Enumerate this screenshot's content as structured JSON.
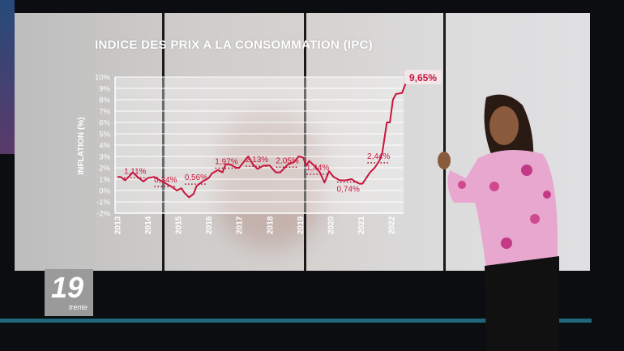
{
  "chart_data": {
    "type": "line",
    "title": "INDICE DES PRIX A LA CONSOMMATION (IPC)",
    "ylabel": "INFLATION (%)",
    "xlabel": "",
    "ylim": [
      -2,
      10
    ],
    "xlim": [
      2013,
      2022.6
    ],
    "grid": true,
    "yticks": [
      "-2%",
      "-1%",
      "0%",
      "1%",
      "2%",
      "3%",
      "4%",
      "5%",
      "6%",
      "7%",
      "8%",
      "9%",
      "10%"
    ],
    "xticks": [
      "2013",
      "2014",
      "2015",
      "2016",
      "2017",
      "2018",
      "2019",
      "2020",
      "2021",
      "2022"
    ],
    "line_color": "#c8143c",
    "series": [
      {
        "x": [
          2013.0,
          2013.1,
          2013.25,
          2013.4,
          2013.5,
          2013.7,
          2013.85,
          2014.0,
          2014.2,
          2014.4,
          2014.6,
          2014.8,
          2014.95,
          2015.1,
          2015.2,
          2015.35,
          2015.5,
          2015.6,
          2015.8,
          2016.0,
          2016.1,
          2016.3,
          2016.45,
          2016.55,
          2016.7,
          2016.9,
          2017.0,
          2017.2,
          2017.3,
          2017.45,
          2017.6,
          2017.8,
          2018.0,
          2018.2,
          2018.35,
          2018.6,
          2018.8,
          2018.95,
          2019.1,
          2019.2,
          2019.3,
          2019.5,
          2019.65,
          2019.8,
          2019.95,
          2020.1,
          2020.3,
          2020.5,
          2020.7,
          2020.8,
          2020.95,
          2021.05,
          2021.3,
          2021.45,
          2021.6,
          2021.7,
          2021.85,
          2021.95,
          2022.05,
          2022.15,
          2022.35,
          2022.5
        ],
        "y": [
          1.2,
          1.2,
          0.9,
          1.3,
          1.6,
          1.1,
          0.8,
          1.1,
          1.2,
          0.9,
          0.6,
          0.3,
          0.0,
          0.2,
          -0.2,
          -0.6,
          -0.3,
          0.4,
          0.8,
          1.1,
          1.5,
          1.8,
          1.6,
          2.3,
          2.3,
          2.0,
          2.0,
          2.7,
          3.0,
          2.3,
          1.9,
          2.2,
          2.2,
          1.6,
          1.6,
          2.3,
          2.5,
          3.0,
          2.9,
          2.2,
          2.6,
          2.1,
          1.6,
          0.7,
          1.7,
          1.2,
          0.9,
          0.9,
          1.0,
          0.8,
          0.6,
          0.6,
          1.6,
          2.0,
          2.6,
          3.3,
          6.0,
          6.0,
          8.0,
          8.5,
          8.6,
          9.65
        ]
      }
    ],
    "annual_averages": [
      {
        "year": 2013,
        "value": 1.11,
        "label": "1,11%"
      },
      {
        "year": 2014,
        "value": 0.34,
        "label": "0,34%"
      },
      {
        "year": 2015,
        "value": 0.56,
        "label": "0,56%"
      },
      {
        "year": 2016,
        "value": 1.97,
        "label": "1,97%"
      },
      {
        "year": 2017,
        "value": 2.13,
        "label": "2,13%"
      },
      {
        "year": 2018,
        "value": 2.05,
        "label": "2,05%"
      },
      {
        "year": 2019,
        "value": 1.44,
        "label": "1,44%"
      },
      {
        "year": 2020,
        "value": 0.74,
        "label": "0,74%"
      },
      {
        "year": 2021,
        "value": 2.44,
        "label": "2,44%"
      }
    ],
    "last_value_label": "9,65%"
  },
  "logo": {
    "number": "19",
    "sub": "trente"
  }
}
